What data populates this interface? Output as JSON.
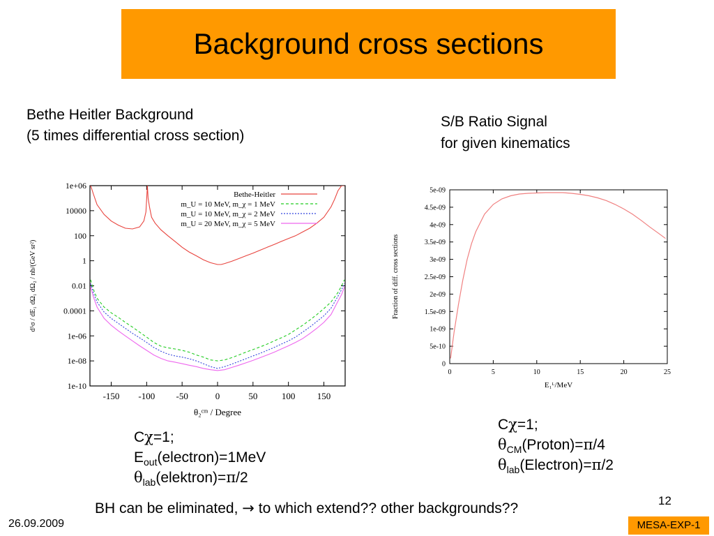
{
  "slide": {
    "title": "Background  cross sections",
    "left_heading_1": "Bethe Heitler Background",
    "left_heading_2": "(5 times differential cross section)",
    "right_heading_1": "S/B Ratio Signal",
    "right_heading_2": "for given kinematics",
    "left_note": {
      "l1_a": "C",
      "l1_sym": "χ",
      "l1_b": "=1;",
      "l2_a": "E",
      "l2_sub": "out",
      "l2_b": "(electron)=1MeV",
      "l3_sym": "θ",
      "l3_sub": "lab",
      "l3_b": "(elektron)=",
      "l3_pi": "π",
      "l3_c": "/2"
    },
    "right_note": {
      "l1_a": "C",
      "l1_sym": "χ",
      "l1_b": "=1;",
      "l2_sym": "θ",
      "l2_sub": "CM",
      "l2_b": "(Proton)=",
      "l2_pi": "π",
      "l2_c": "/4",
      "l3_sym": "θ",
      "l3_sub": "lab",
      "l3_b": "(Electron)=",
      "l3_pi": "π",
      "l3_c": "/2"
    },
    "bottom_line_a": "BH can be eliminated, ",
    "bottom_arrow": "→",
    "bottom_line_b": " to which extend?? other backgrounds??",
    "page_number": "12",
    "date": "26.09.2009",
    "badge": "MESA-EXP-1",
    "colors": {
      "accent": "#ff9900"
    }
  },
  "chart_data": [
    {
      "type": "line",
      "xlabel": "θ₂ᶜᵐ / Degree",
      "ylabel": "d⁵σ / dE₁ dΩ₁ dΩ₂ / nb/(GeV sr²)",
      "xlim": [
        -180,
        180
      ],
      "ylim": [
        1e-10,
        1000000.0
      ],
      "yscale": "log",
      "x_ticks": [
        -150,
        -100,
        -50,
        0,
        50,
        100,
        150
      ],
      "y_ticks": [
        "1e-10",
        "1e-08",
        "1e-06",
        "0.0001",
        "0.01",
        "1",
        "100",
        "10000",
        "1e+06"
      ],
      "legend_position": "top-right",
      "series": [
        {
          "name": "Bethe-Heitler",
          "color": "#e8433d",
          "dash": "",
          "x": [
            -179,
            -175,
            -170,
            -160,
            -150,
            -140,
            -130,
            -120,
            -110,
            -104,
            -101,
            -99,
            -98,
            -96,
            -93,
            -88,
            -80,
            -70,
            -60,
            -50,
            -40,
            -30,
            -20,
            -10,
            0,
            5,
            10,
            20,
            30,
            40,
            50,
            60,
            70,
            80,
            90,
            100,
            110,
            120,
            130,
            140,
            150,
            160,
            165,
            170,
            175,
            179
          ],
          "y": [
            1000000.0,
            200000.0,
            30000.0,
            5000.0,
            1500.0,
            700.0,
            400.0,
            350.0,
            500.0,
            1500.0,
            8000.0,
            1000000.0,
            100000.0,
            20000.0,
            3000.0,
            1000.0,
            300.0,
            100.0,
            35,
            12,
            5,
            2.5,
            1.2,
            0.7,
            0.5,
            0.5,
            0.6,
            0.9,
            1.5,
            2.5,
            4,
            7,
            12,
            20,
            35,
            60,
            100,
            200,
            400,
            1000,
            3000.0,
            20000.0,
            80000.0,
            400000.0,
            1000000.0,
            1000000.0
          ]
        },
        {
          "name": "m_U = 10 MeV, m_χ = 1 MeV",
          "color": "#22cc22",
          "dash": "4,3",
          "x": [
            -179,
            -175,
            -170,
            -160,
            -150,
            -140,
            -130,
            -120,
            -110,
            -100,
            -90,
            -80,
            -70,
            -60,
            -50,
            -40,
            -30,
            -20,
            -10,
            0,
            10,
            20,
            30,
            40,
            50,
            60,
            70,
            80,
            90,
            100,
            110,
            120,
            130,
            140,
            150,
            160,
            170,
            175,
            179
          ],
          "y": [
            0.03,
            0.005,
            0.001,
            0.0002,
            7e-05,
            3e-05,
            1.2e-05,
            5e-06,
            2e-06,
            8e-07,
            3e-07,
            1.5e-07,
            1.1e-07,
            9e-08,
            7e-08,
            5e-08,
            3e-08,
            2e-08,
            1.2e-08,
            1e-08,
            1.2e-08,
            1.8e-08,
            3e-08,
            5e-08,
            8e-08,
            1.3e-07,
            2.2e-07,
            4e-07,
            7e-07,
            1.3e-06,
            3e-06,
            7e-06,
            1.8e-05,
            5e-05,
            0.00015,
            0.0005,
            0.003,
            0.01,
            0.03
          ]
        },
        {
          "name": "m_U = 10 MeV, m_χ = 2 MeV",
          "color": "#3344dd",
          "dash": "2,2",
          "x": [
            -179,
            -175,
            -170,
            -160,
            -150,
            -140,
            -130,
            -120,
            -110,
            -100,
            -90,
            -80,
            -70,
            -60,
            -50,
            -40,
            -30,
            -20,
            -10,
            0,
            10,
            20,
            30,
            40,
            50,
            60,
            70,
            80,
            90,
            100,
            110,
            120,
            130,
            140,
            150,
            160,
            170,
            175,
            179
          ],
          "y": [
            0.015,
            0.0025,
            0.0005,
            8e-05,
            2.5e-05,
            1e-05,
            4e-06,
            1.6e-06,
            7e-07,
            3e-07,
            1.2e-07,
            6e-08,
            3.5e-08,
            2.5e-08,
            2e-08,
            1.5e-08,
            1e-08,
            6e-09,
            3.5e-09,
            2.5e-09,
            3.5e-09,
            5.5e-09,
            9e-09,
            1.5e-08,
            2.5e-08,
            4e-08,
            7e-08,
            1.2e-07,
            2.2e-07,
            4e-07,
            8e-07,
            2e-06,
            5e-06,
            1.4e-05,
            4e-05,
            0.00016,
            0.0015,
            0.005,
            0.015
          ]
        },
        {
          "name": "m_U = 20 MeV, m_χ = 5 MeV",
          "color": "#ee66ee",
          "dash": "",
          "x": [
            -179,
            -175,
            -170,
            -160,
            -150,
            -140,
            -130,
            -120,
            -110,
            -100,
            -90,
            -80,
            -70,
            -60,
            -50,
            -40,
            -30,
            -20,
            -10,
            0,
            10,
            20,
            30,
            40,
            50,
            60,
            70,
            80,
            90,
            100,
            110,
            120,
            130,
            140,
            150,
            160,
            170,
            175,
            179
          ],
          "y": [
            0.008,
            0.0012,
            0.0002,
            2.5e-05,
            7e-06,
            2.5e-06,
            1e-06,
            4e-07,
            1.6e-07,
            7e-08,
            3e-08,
            1.6e-08,
            1e-08,
            8e-09,
            6e-09,
            4.5e-09,
            3.5e-09,
            2.5e-09,
            2e-09,
            1.7e-09,
            2e-09,
            3e-09,
            4.5e-09,
            7e-09,
            1.1e-08,
            1.8e-08,
            3e-08,
            5e-08,
            9e-08,
            1.6e-07,
            3e-07,
            6e-07,
            1.5e-06,
            4e-06,
            1.2e-05,
            5e-05,
            0.0006,
            0.002,
            0.008
          ]
        }
      ]
    },
    {
      "type": "line",
      "xlabel": "E₁ᴸ/MeV",
      "ylabel": "Fraction of diff. cross sections",
      "xlim": [
        0,
        25
      ],
      "ylim": [
        0,
        5e-09
      ],
      "x_ticks": [
        0,
        5,
        10,
        15,
        20,
        25
      ],
      "y_ticks": [
        0,
        5e-10,
        1e-09,
        1.5e-09,
        2e-09,
        2.5e-09,
        3e-09,
        3.5e-09,
        4e-09,
        4.5e-09,
        5e-09
      ],
      "y_tick_labels": [
        "0",
        "5e-10",
        "1e-09",
        "1.5e-09",
        "2e-09",
        "2.5e-09",
        "3e-09",
        "3.5e-09",
        "4e-09",
        "4.5e-09",
        "5e-09"
      ],
      "series": [
        {
          "color": "#f08080",
          "x": [
            0.1,
            0.5,
            1,
            1.5,
            2,
            2.5,
            3,
            4,
            5,
            6,
            7,
            8,
            9,
            10,
            11,
            12,
            13,
            14,
            15,
            16,
            17,
            18,
            19,
            20,
            21,
            22,
            23,
            24,
            24.8
          ],
          "y": [
            1.5e-10,
            9e-10,
            1.7e-09,
            2.4e-09,
            3e-09,
            3.45e-09,
            3.8e-09,
            4.3e-09,
            4.58e-09,
            4.74e-09,
            4.83e-09,
            4.88e-09,
            4.9e-09,
            4.91e-09,
            4.92e-09,
            4.92e-09,
            4.92e-09,
            4.9e-09,
            4.87e-09,
            4.83e-09,
            4.77e-09,
            4.69e-09,
            4.58e-09,
            4.45e-09,
            4.3e-09,
            4.12e-09,
            3.93e-09,
            3.75e-09,
            3.6e-09
          ]
        }
      ]
    }
  ]
}
